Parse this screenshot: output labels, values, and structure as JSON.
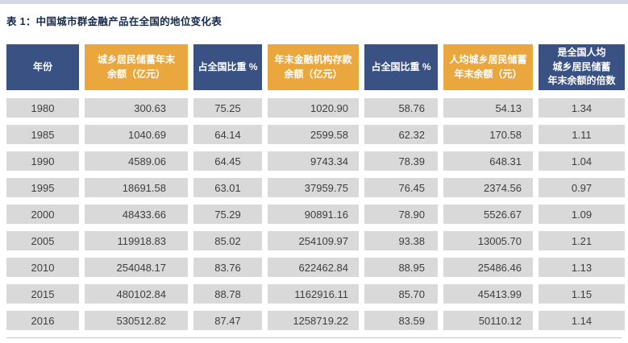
{
  "title": "表 1：中国城市群金融产品在全国的地位变化表",
  "colors": {
    "header_navy": "#3A5183",
    "header_gold": "#EAA73E",
    "row_background": "#D9D9D9",
    "title_text": "#16294C",
    "top_strip": "#D3D8E2",
    "cell_text": "#3E3E3E"
  },
  "table": {
    "headers": [
      "年份",
      "城乡居民储蓄年末\n余额（亿元）",
      "占全国比重 %",
      "年末金融机构存款\n余额（亿元）",
      "占全国比重 %",
      "人均城乡居民储蓄\n年末余额（元）",
      "是全国人均\n城乡居民储蓄\n年末余额的倍数"
    ],
    "rows": [
      [
        "1980",
        "300.63",
        "75.25",
        "1020.90",
        "58.76",
        "54.13",
        "1.34"
      ],
      [
        "1985",
        "1040.69",
        "64.14",
        "2599.58",
        "62.32",
        "170.58",
        "1.11"
      ],
      [
        "1990",
        "4589.06",
        "64.45",
        "9743.34",
        "78.39",
        "648.31",
        "1.04"
      ],
      [
        "1995",
        "18691.58",
        "63.01",
        "37959.75",
        "76.45",
        "2374.56",
        "0.97"
      ],
      [
        "2000",
        "48433.66",
        "75.29",
        "90891.16",
        "78.90",
        "5526.67",
        "1.09"
      ],
      [
        "2005",
        "119918.83",
        "85.02",
        "254109.97",
        "93.38",
        "13005.70",
        "1.21"
      ],
      [
        "2010",
        "254048.17",
        "83.76",
        "622462.84",
        "88.95",
        "25486.46",
        "1.13"
      ],
      [
        "2015",
        "480102.84",
        "88.78",
        "1162916.11",
        "85.70",
        "45413.99",
        "1.15"
      ],
      [
        "2016",
        "530512.82",
        "87.47",
        "1258719.22",
        "83.59",
        "50110.12",
        "1.14"
      ]
    ]
  },
  "chart_data": {
    "type": "table",
    "title": "表 1：中国城市群金融产品在全国的地位变化表",
    "columns": [
      "年份",
      "城乡居民储蓄年末余额（亿元）",
      "占全国比重 %",
      "年末金融机构存款余额（亿元）",
      "占全国比重 %",
      "人均城乡居民储蓄年末余额（元）",
      "是全国人均城乡居民储蓄年末余额的倍数"
    ],
    "rows": [
      [
        1980,
        300.63,
        75.25,
        1020.9,
        58.76,
        54.13,
        1.34
      ],
      [
        1985,
        1040.69,
        64.14,
        2599.58,
        62.32,
        170.58,
        1.11
      ],
      [
        1990,
        4589.06,
        64.45,
        9743.34,
        78.39,
        648.31,
        1.04
      ],
      [
        1995,
        18691.58,
        63.01,
        37959.75,
        76.45,
        2374.56,
        0.97
      ],
      [
        2000,
        48433.66,
        75.29,
        90891.16,
        78.9,
        5526.67,
        1.09
      ],
      [
        2005,
        119918.83,
        85.02,
        254109.97,
        93.38,
        13005.7,
        1.21
      ],
      [
        2010,
        254048.17,
        83.76,
        622462.84,
        88.95,
        25486.46,
        1.13
      ],
      [
        2015,
        480102.84,
        88.78,
        1162916.11,
        85.7,
        45413.99,
        1.15
      ],
      [
        2016,
        530512.82,
        87.47,
        1258719.22,
        83.59,
        50110.12,
        1.14
      ]
    ]
  }
}
